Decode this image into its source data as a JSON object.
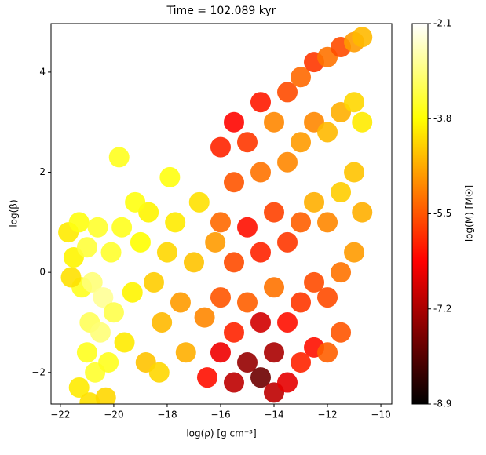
{
  "chart_data": {
    "type": "scatter",
    "title": "Time = 102.089 kyr",
    "xlabel": "log(ρ) [g cm⁻³]",
    "ylabel": "log(β)",
    "colorbar_label": "log(M) [M☉]",
    "colormap": "hot",
    "xlim": [
      -22.35,
      -9.59
    ],
    "ylim": [
      -2.63,
      4.97
    ],
    "clim": [
      -8.9,
      -2.1
    ],
    "xticks": [
      {
        "value": -22,
        "label": "−22"
      },
      {
        "value": -20,
        "label": "−20"
      },
      {
        "value": -18,
        "label": "−18"
      },
      {
        "value": -16,
        "label": "−16"
      },
      {
        "value": -14,
        "label": "−14"
      },
      {
        "value": -12,
        "label": "−12"
      },
      {
        "value": -10,
        "label": "−10"
      }
    ],
    "yticks": [
      {
        "value": -2,
        "label": "−2"
      },
      0,
      2,
      4
    ],
    "cticks": [
      -2.1,
      -3.8,
      -5.5,
      -7.2,
      -8.9
    ],
    "x": [
      -21.7,
      -21.5,
      -21.3,
      -21.0,
      -20.6,
      -21.2,
      -20.8,
      -20.4,
      -20.9,
      -20.5,
      -21.0,
      -20.7,
      -21.3,
      -20.9,
      -20.3,
      -20.2,
      -20.0,
      -20.1,
      -19.7,
      -21.6,
      -19.6,
      -19.3,
      -19.0,
      -18.7,
      -18.5,
      -18.8,
      -18.2,
      -18.0,
      -17.7,
      -17.5,
      -17.3,
      -17.0,
      -16.8,
      -16.6,
      -16.5,
      -16.2,
      -19.8,
      -17.9,
      -19.2,
      -18.3,
      -16.0,
      -16.0,
      -16.0,
      -16.0,
      -15.5,
      -15.5,
      -15.5,
      -15.5,
      -15.5,
      -15.0,
      -15.0,
      -15.0,
      -15.0,
      -14.5,
      -14.5,
      -14.5,
      -14.5,
      -14.5,
      -14.0,
      -14.0,
      -14.0,
      -14.0,
      -14.0,
      -13.5,
      -13.5,
      -13.5,
      -13.5,
      -13.5,
      -13.0,
      -13.0,
      -13.0,
      -13.0,
      -13.0,
      -12.5,
      -12.5,
      -12.5,
      -12.5,
      -12.5,
      -12.0,
      -12.0,
      -12.0,
      -12.0,
      -12.0,
      -11.5,
      -11.5,
      -11.5,
      -11.5,
      -11.5,
      -11.0,
      -11.0,
      -11.0,
      -11.0,
      -10.7,
      -10.7,
      -10.7
    ],
    "y": [
      0.8,
      0.3,
      1.0,
      0.5,
      0.9,
      -0.3,
      -0.2,
      -0.5,
      -1.0,
      -1.2,
      -1.6,
      -2.0,
      -2.3,
      -2.6,
      -2.5,
      -1.8,
      -0.8,
      0.4,
      0.9,
      -0.1,
      -1.4,
      -0.4,
      0.6,
      1.2,
      -0.2,
      -1.8,
      -1.0,
      0.4,
      1.0,
      -0.6,
      -1.6,
      0.2,
      1.4,
      -0.9,
      -2.1,
      0.6,
      2.3,
      1.9,
      1.4,
      -2.0,
      2.5,
      1.0,
      -0.5,
      -1.6,
      3.0,
      1.8,
      0.2,
      -1.2,
      -2.2,
      2.6,
      0.9,
      -0.6,
      -1.8,
      3.4,
      2.0,
      0.4,
      -1.0,
      -2.1,
      3.0,
      1.2,
      -0.3,
      -1.6,
      -2.4,
      3.6,
      2.2,
      0.6,
      -1.0,
      -2.2,
      3.9,
      2.6,
      1.0,
      -0.6,
      -1.8,
      4.2,
      3.0,
      1.4,
      -0.2,
      -1.5,
      4.3,
      2.8,
      1.0,
      -0.5,
      -1.6,
      4.5,
      3.2,
      1.6,
      0.0,
      -1.2,
      4.6,
      3.4,
      2.0,
      0.4,
      4.7,
      3.0,
      1.2
    ],
    "c": [
      -4.0,
      -3.9,
      -3.7,
      -3.4,
      -3.5,
      -3.6,
      -3.0,
      -2.8,
      -3.2,
      -3.0,
      -3.6,
      -3.5,
      -4.0,
      -4.1,
      -4.2,
      -3.6,
      -3.3,
      -3.5,
      -3.6,
      -4.1,
      -4.0,
      -3.9,
      -3.8,
      -3.9,
      -4.3,
      -4.4,
      -4.5,
      -4.2,
      -4.0,
      -4.8,
      -4.6,
      -4.4,
      -4.1,
      -5.0,
      -6.2,
      -4.8,
      -3.6,
      -3.7,
      -3.7,
      -4.2,
      -6.0,
      -5.3,
      -5.5,
      -6.5,
      -6.3,
      -5.5,
      -5.6,
      -6.0,
      -7.0,
      -5.8,
      -6.2,
      -5.4,
      -7.4,
      -6.1,
      -5.2,
      -6.0,
      -6.8,
      -7.8,
      -5.0,
      -5.7,
      -5.2,
      -7.2,
      -7.0,
      -5.6,
      -5.0,
      -5.8,
      -6.2,
      -6.6,
      -5.3,
      -4.8,
      -5.4,
      -5.8,
      -6.0,
      -5.8,
      -5.0,
      -4.6,
      -5.6,
      -6.2,
      -5.2,
      -4.5,
      -5.0,
      -5.6,
      -5.4,
      -5.6,
      -4.6,
      -4.3,
      -5.2,
      -5.5,
      -4.8,
      -4.2,
      -4.4,
      -4.8,
      -4.5,
      -4.0,
      -4.6
    ]
  }
}
